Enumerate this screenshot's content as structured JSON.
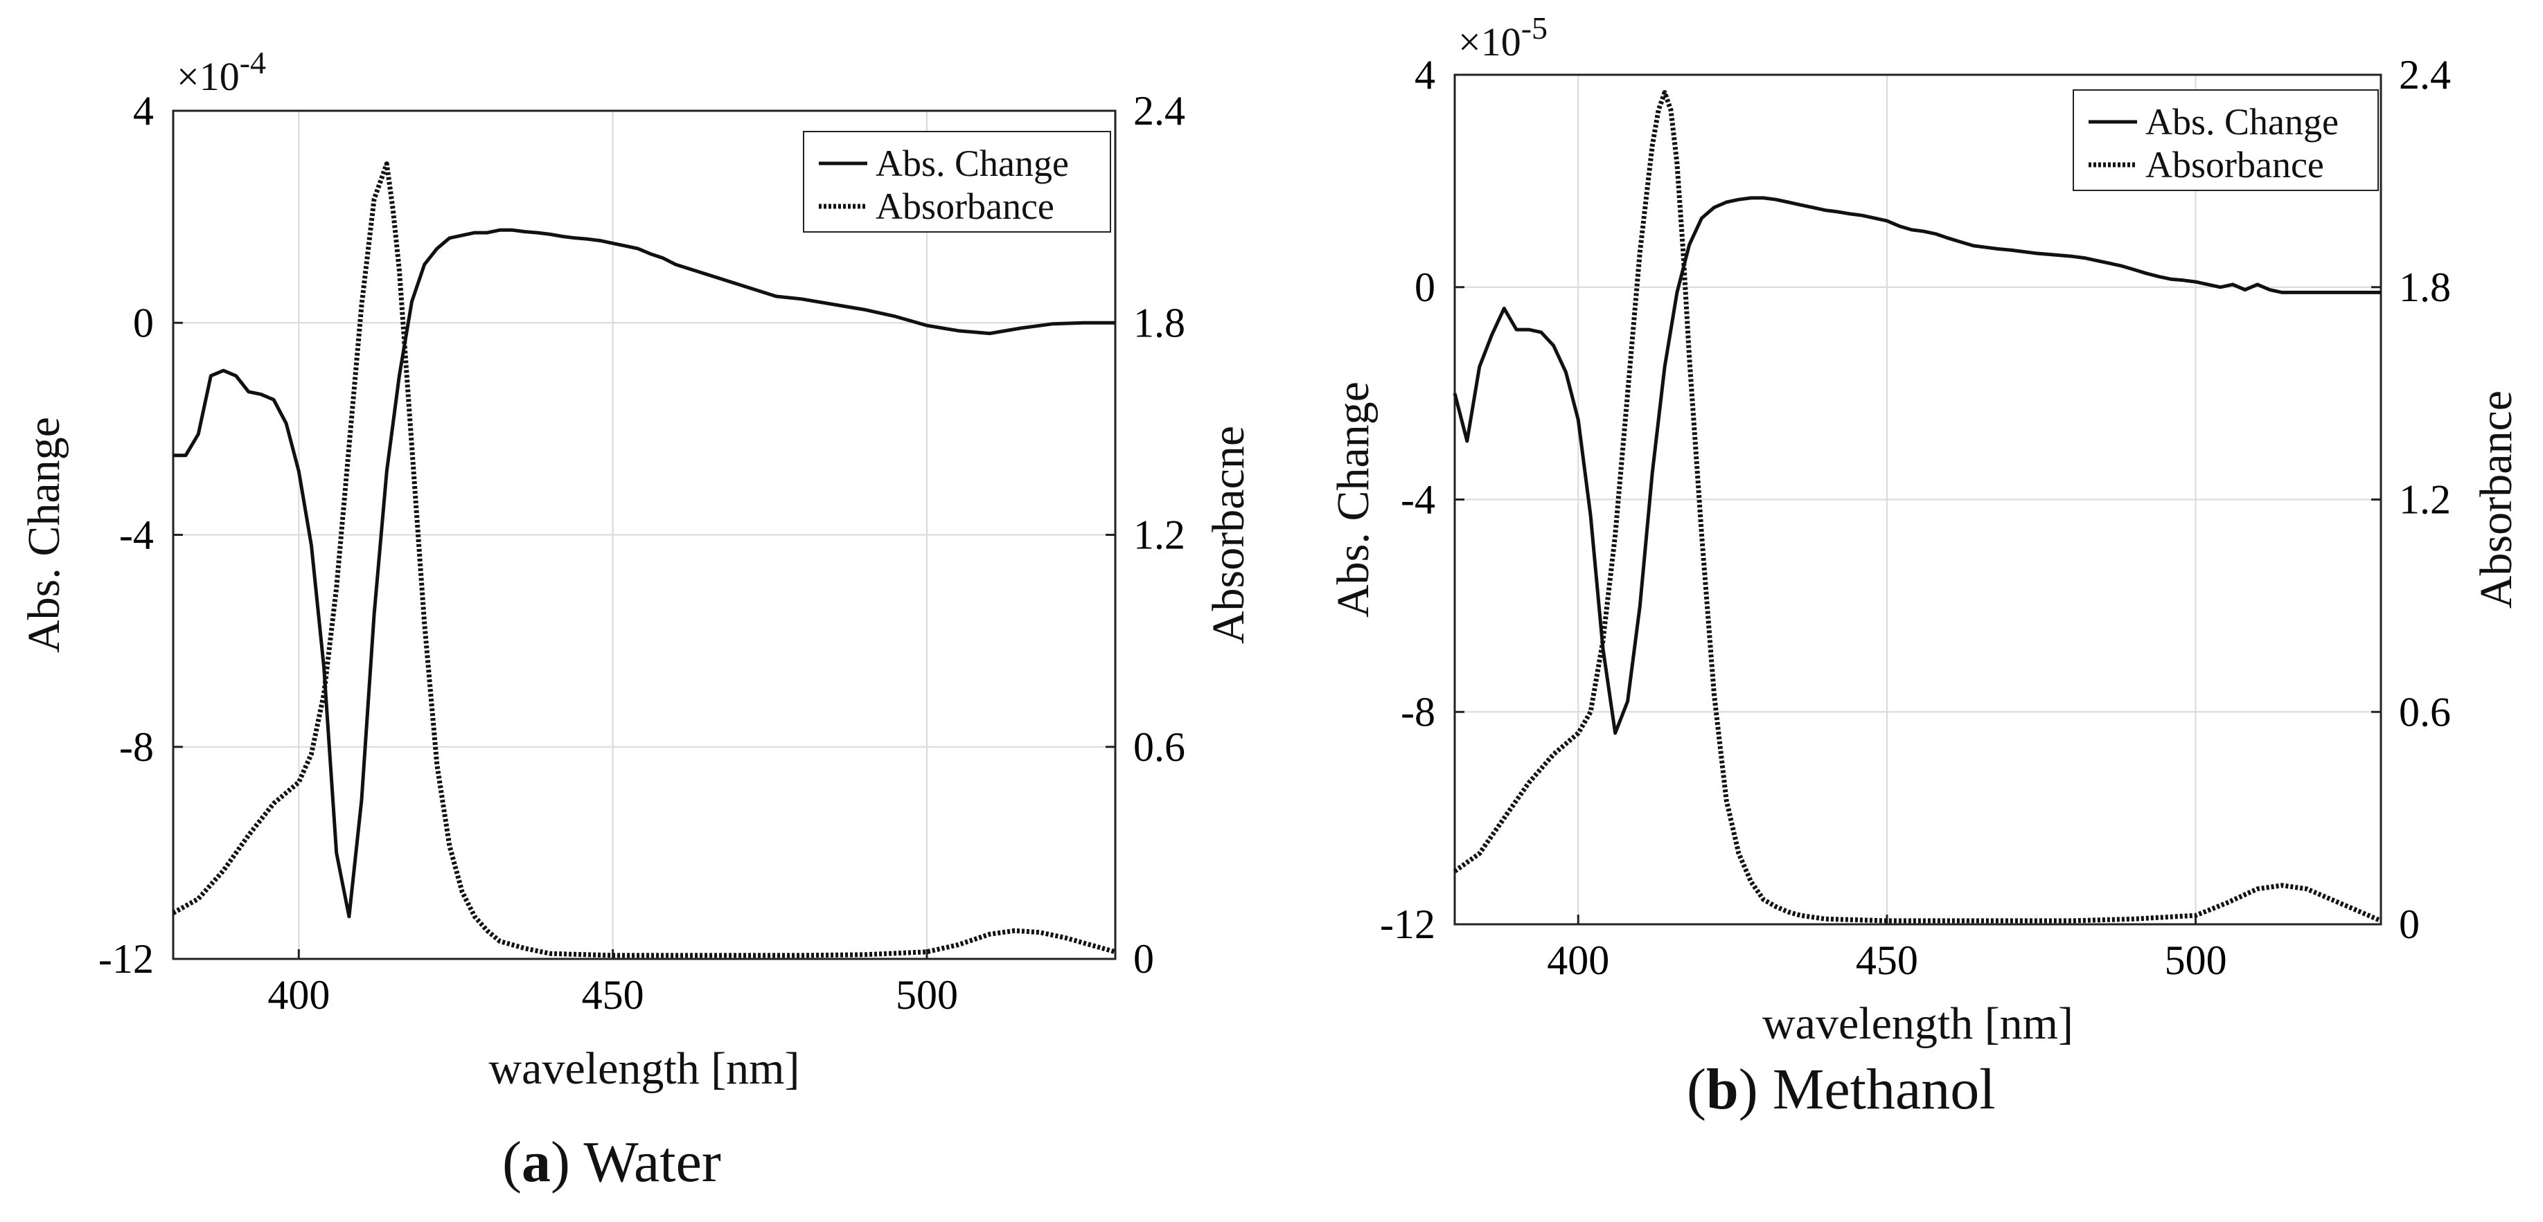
{
  "chart_data": [
    {
      "id": "water",
      "type": "line",
      "caption_letter": "a",
      "caption_text": "Water",
      "xlabel": "wavelength [nm]",
      "ylabel_left": "Abs. Change",
      "ylabel_right": "Absorbacne",
      "exponent_base": "×10",
      "exponent_power": "-4",
      "xlim": [
        380,
        530
      ],
      "ylim_left": [
        -12,
        4
      ],
      "ylim_right": [
        0,
        2.4
      ],
      "xticks": [
        400,
        450,
        500
      ],
      "yticks_left": [
        -12,
        -8,
        -4,
        0,
        4
      ],
      "yticks_left_labels": [
        "-12",
        "-8",
        "-4",
        "0",
        "4"
      ],
      "yticks_right": [
        0,
        0.6,
        1.2,
        1.8,
        2.4
      ],
      "yticks_right_labels": [
        "0",
        "0.6",
        "1.2",
        "1.8",
        "2.4"
      ],
      "grid": true,
      "legend_position": "top-right",
      "series": [
        {
          "name": "Abs. Change",
          "axis": "left",
          "style": "solid",
          "x": [
            380,
            382,
            384,
            386,
            388,
            390,
            392,
            394,
            396,
            398,
            400,
            402,
            404,
            406,
            408,
            410,
            412,
            414,
            416,
            418,
            420,
            422,
            424,
            426,
            428,
            430,
            432,
            434,
            436,
            438,
            440,
            442,
            444,
            446,
            448,
            450,
            452,
            454,
            456,
            458,
            460,
            464,
            468,
            472,
            476,
            480,
            485,
            490,
            495,
            500,
            505,
            510,
            515,
            520,
            525,
            530
          ],
          "y": [
            -2.5,
            -2.5,
            -2.1,
            -1.0,
            -0.9,
            -1.0,
            -1.3,
            -1.35,
            -1.45,
            -1.9,
            -2.8,
            -4.2,
            -6.5,
            -10.0,
            -11.2,
            -9.0,
            -5.5,
            -2.8,
            -1.0,
            0.4,
            1.1,
            1.4,
            1.6,
            1.65,
            1.7,
            1.7,
            1.75,
            1.75,
            1.72,
            1.7,
            1.67,
            1.63,
            1.6,
            1.58,
            1.55,
            1.5,
            1.45,
            1.4,
            1.3,
            1.22,
            1.1,
            0.95,
            0.8,
            0.65,
            0.5,
            0.45,
            0.35,
            0.25,
            0.12,
            -0.05,
            -0.15,
            -0.2,
            -0.1,
            -0.02,
            0.0,
            0.0
          ]
        },
        {
          "name": "Absorbance",
          "axis": "right",
          "style": "dotted",
          "x": [
            380,
            384,
            388,
            392,
            396,
            400,
            402,
            404,
            406,
            408,
            410,
            412,
            413,
            414,
            415,
            416,
            418,
            420,
            422,
            424,
            426,
            428,
            430,
            432,
            434,
            436,
            440,
            450,
            460,
            470,
            480,
            490,
            500,
            505,
            510,
            514,
            518,
            522,
            526,
            530
          ],
          "y": [
            0.13,
            0.17,
            0.25,
            0.35,
            0.44,
            0.5,
            0.58,
            0.75,
            1.05,
            1.45,
            1.85,
            2.15,
            2.2,
            2.25,
            2.12,
            1.95,
            1.45,
            0.95,
            0.55,
            0.32,
            0.19,
            0.12,
            0.08,
            0.05,
            0.04,
            0.03,
            0.015,
            0.01,
            0.01,
            0.01,
            0.01,
            0.012,
            0.02,
            0.04,
            0.07,
            0.08,
            0.075,
            0.06,
            0.04,
            0.02
          ]
        }
      ]
    },
    {
      "id": "methanol",
      "type": "line",
      "caption_letter": "b",
      "caption_text": "Methanol",
      "xlabel": "wavelength [nm]",
      "ylabel_left": "Abs. Change",
      "ylabel_right": "Absorbance",
      "exponent_base": "×10",
      "exponent_power": "-5",
      "xlim": [
        380,
        530
      ],
      "ylim_left": [
        -12,
        4
      ],
      "ylim_right": [
        0,
        2.4
      ],
      "xticks": [
        400,
        450,
        500
      ],
      "yticks_left": [
        -12,
        -8,
        -4,
        0,
        4
      ],
      "yticks_left_labels": [
        "-12",
        "-8",
        "-4",
        "0",
        "4"
      ],
      "yticks_right": [
        0,
        0.6,
        1.2,
        1.8,
        2.4
      ],
      "yticks_right_labels": [
        "0",
        "0.6",
        "1.2",
        "1.8",
        "2.4"
      ],
      "grid": true,
      "legend_position": "top-right",
      "series": [
        {
          "name": "Abs. Change",
          "axis": "left",
          "style": "solid",
          "x": [
            380,
            382,
            384,
            386,
            388,
            390,
            392,
            394,
            396,
            398,
            400,
            402,
            404,
            406,
            408,
            410,
            412,
            414,
            416,
            418,
            420,
            422,
            424,
            426,
            428,
            430,
            432,
            434,
            436,
            438,
            440,
            442,
            444,
            446,
            448,
            450,
            452,
            454,
            456,
            458,
            460,
            462,
            464,
            466,
            468,
            470,
            472,
            474,
            476,
            478,
            480,
            482,
            484,
            486,
            488,
            490,
            492,
            494,
            496,
            498,
            500,
            502,
            504,
            506,
            508,
            510,
            512,
            514,
            516,
            518,
            520,
            522,
            524,
            526,
            528,
            530
          ],
          "y": [
            -2.0,
            -2.9,
            -1.5,
            -0.9,
            -0.4,
            -0.8,
            -0.8,
            -0.85,
            -1.1,
            -1.6,
            -2.5,
            -4.3,
            -6.8,
            -8.4,
            -7.8,
            -6.0,
            -3.5,
            -1.5,
            -0.1,
            0.8,
            1.3,
            1.5,
            1.6,
            1.65,
            1.68,
            1.68,
            1.65,
            1.6,
            1.55,
            1.5,
            1.45,
            1.42,
            1.38,
            1.35,
            1.3,
            1.25,
            1.15,
            1.08,
            1.05,
            1.0,
            0.92,
            0.85,
            0.78,
            0.75,
            0.72,
            0.7,
            0.67,
            0.64,
            0.62,
            0.6,
            0.58,
            0.55,
            0.5,
            0.45,
            0.4,
            0.33,
            0.26,
            0.2,
            0.15,
            0.13,
            0.1,
            0.05,
            0.0,
            0.05,
            -0.05,
            0.05,
            -0.05,
            -0.1,
            -0.1,
            -0.1,
            -0.1,
            -0.1,
            -0.1,
            -0.1,
            -0.1,
            -0.1
          ]
        },
        {
          "name": "Absorbance",
          "axis": "right",
          "style": "dotted",
          "x": [
            380,
            384,
            388,
            392,
            396,
            400,
            402,
            404,
            406,
            408,
            410,
            412,
            413,
            414,
            415,
            416,
            417,
            418,
            420,
            422,
            424,
            426,
            428,
            430,
            432,
            434,
            436,
            440,
            450,
            460,
            470,
            480,
            490,
            500,
            505,
            510,
            514,
            518,
            522,
            526,
            530
          ],
          "y": [
            0.15,
            0.2,
            0.3,
            0.4,
            0.48,
            0.54,
            0.6,
            0.8,
            1.1,
            1.5,
            1.9,
            2.2,
            2.3,
            2.35,
            2.3,
            2.15,
            1.9,
            1.6,
            1.1,
            0.65,
            0.35,
            0.2,
            0.12,
            0.07,
            0.05,
            0.035,
            0.025,
            0.015,
            0.01,
            0.01,
            0.01,
            0.01,
            0.015,
            0.025,
            0.06,
            0.1,
            0.11,
            0.1,
            0.07,
            0.04,
            0.01
          ]
        }
      ]
    }
  ]
}
